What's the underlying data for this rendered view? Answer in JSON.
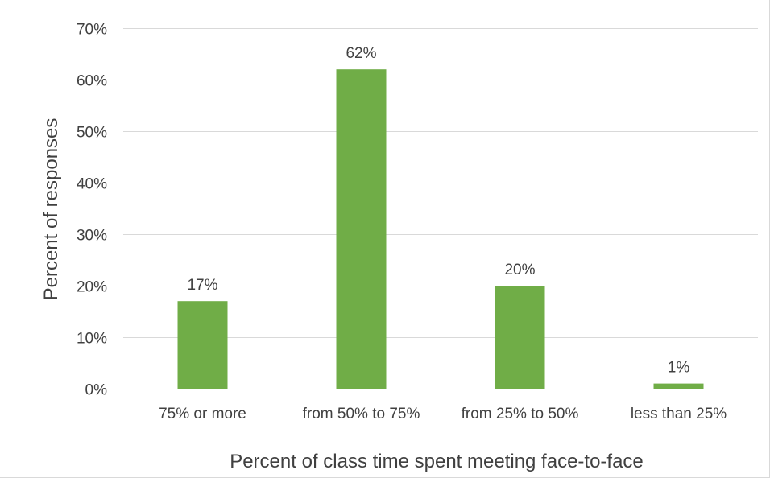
{
  "chart_data": {
    "type": "bar",
    "title": "",
    "xlabel": "Percent of class time spent meeting face-to-face",
    "ylabel": "Percent of responses",
    "categories": [
      "75% or more",
      "from 50% to 75%",
      "from 25% to 50%",
      "less than 25%"
    ],
    "values": [
      17,
      62,
      20,
      1
    ],
    "data_labels": [
      "17%",
      "62%",
      "20%",
      "1%"
    ],
    "ylim": [
      0,
      70
    ],
    "yticks": [
      0,
      10,
      20,
      30,
      40,
      50,
      60,
      70
    ],
    "ytick_labels": [
      "0%",
      "10%",
      "20%",
      "30%",
      "40%",
      "50%",
      "60%",
      "70%"
    ],
    "grid": "horizontal",
    "legend": "none",
    "colors": {
      "bar": "#70ad47",
      "grid": "#d9d9d9",
      "text": "#404040"
    }
  }
}
